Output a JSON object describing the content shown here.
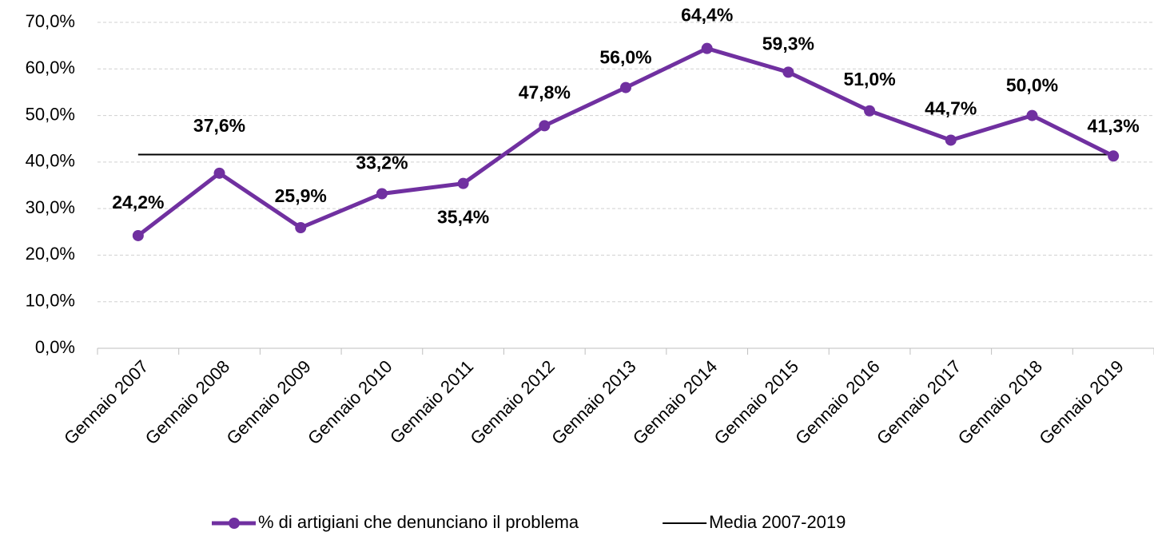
{
  "chart_data": {
    "type": "line",
    "categories": [
      "Gennaio 2007",
      "Gennaio 2008",
      "Gennaio 2009",
      "Gennaio 2010",
      "Gennaio 2011",
      "Gennaio 2012",
      "Gennaio 2013",
      "Gennaio 2014",
      "Gennaio 2015",
      "Gennaio 2016",
      "Gennaio 2017",
      "Gennaio 2018",
      "Gennaio 2019"
    ],
    "series": [
      {
        "name": "% di artigiani che denunciano il problema",
        "color": "#7030a0",
        "values": [
          24.2,
          37.6,
          25.9,
          33.2,
          35.4,
          47.8,
          56.0,
          64.4,
          59.3,
          51.0,
          44.7,
          50.0,
          41.3
        ],
        "value_labels": [
          "24,2%",
          "37,6%",
          "25,9%",
          "33,2%",
          "35,4%",
          "47,8%",
          "56,0%",
          "64,4%",
          "59,3%",
          "51,0%",
          "44,7%",
          "50,0%",
          "41,3%"
        ],
        "markers": true
      },
      {
        "name": "Media 2007-2019",
        "color": "#000000",
        "values": [
          41.6,
          41.6,
          41.6,
          41.6,
          41.6,
          41.6,
          41.6,
          41.6,
          41.6,
          41.6,
          41.6,
          41.6,
          41.6
        ],
        "markers": false
      }
    ],
    "ylim": [
      0,
      70
    ],
    "yticks": [
      {
        "value": 0,
        "label": "0,0%"
      },
      {
        "value": 10,
        "label": "10,0%"
      },
      {
        "value": 20,
        "label": "20,0%"
      },
      {
        "value": 30,
        "label": "30,0%"
      },
      {
        "value": 40,
        "label": "40,0%"
      },
      {
        "value": 50,
        "label": "50,0%"
      },
      {
        "value": 60,
        "label": "60,0%"
      },
      {
        "value": 70,
        "label": "70,0%"
      }
    ],
    "grid": true,
    "legend": "bottom"
  }
}
